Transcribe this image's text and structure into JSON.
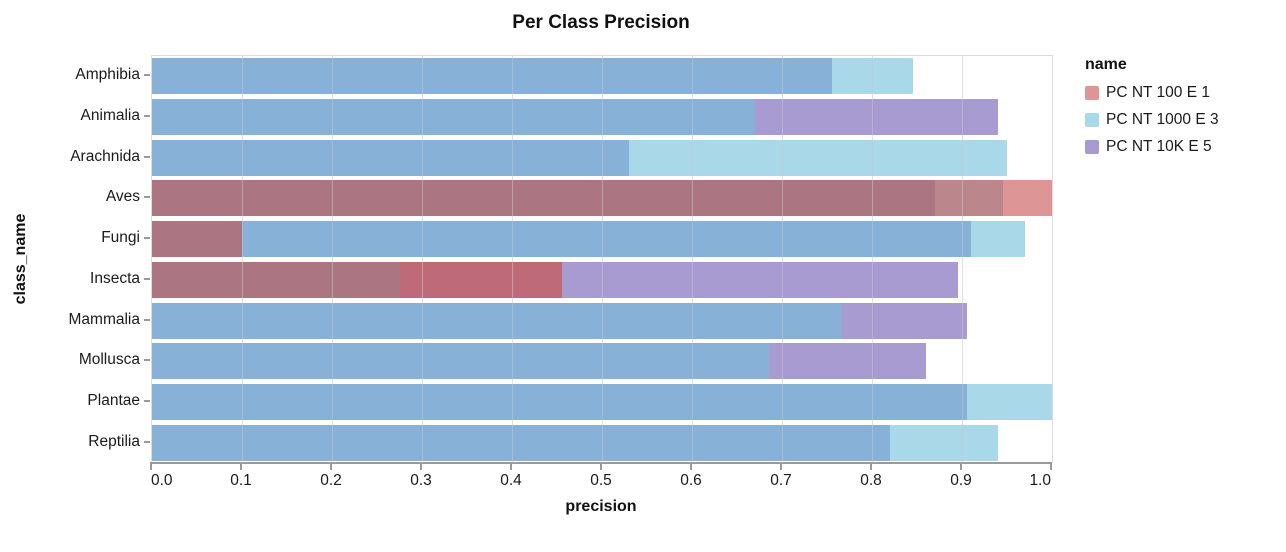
{
  "chart_data": {
    "type": "bar",
    "orientation": "horizontal",
    "title": "Per Class Precision",
    "xlabel": "precision",
    "ylabel": "class_name",
    "legend_title": "name",
    "legend_position": "right",
    "grid": true,
    "xlim": [
      0.0,
      1.0
    ],
    "xticks": [
      0.0,
      0.1,
      0.2,
      0.3,
      0.4,
      0.5,
      0.6,
      0.7,
      0.8,
      0.9,
      1.0
    ],
    "xtick_labels": [
      "0.0",
      "0.1",
      "0.2",
      "0.3",
      "0.4",
      "0.5",
      "0.6",
      "0.7",
      "0.8",
      "0.9",
      "1.0"
    ],
    "categories": [
      "Amphibia",
      "Animalia",
      "Arachnida",
      "Aves",
      "Fungi",
      "Insecta",
      "Mammalia",
      "Mollusca",
      "Plantae",
      "Reptilia"
    ],
    "series": [
      {
        "name": "PC NT 100 E 1",
        "key": "r",
        "color": "#dd9595",
        "values": [
          null,
          null,
          null,
          1.0,
          0.1,
          0.455,
          null,
          null,
          null,
          null
        ]
      },
      {
        "name": "PC NT 1000 E 3",
        "key": "b",
        "color": "#a9d9e8",
        "values": [
          0.845,
          0.67,
          0.95,
          0.945,
          0.97,
          0.275,
          0.765,
          0.685,
          1.0,
          0.94
        ]
      },
      {
        "name": "PC NT 10K E 5",
        "key": "p",
        "color": "#a79bd1",
        "values": [
          0.755,
          0.94,
          0.53,
          0.87,
          0.91,
          0.895,
          0.905,
          0.86,
          0.905,
          0.82
        ]
      }
    ],
    "overlap_colors": {
      "r": "#dd9595",
      "b": "#a9d9e8",
      "p": "#a79bd1",
      "bp": "#87b1d7",
      "rp": "#bf6a78",
      "rb": "#bb868c",
      "rbp": "#ab7582"
    },
    "style": {
      "axis_color": "#9a9a9a",
      "grid_color": "#d7dade",
      "text_color": "#1a1a1a",
      "title_color": "#111111"
    }
  }
}
